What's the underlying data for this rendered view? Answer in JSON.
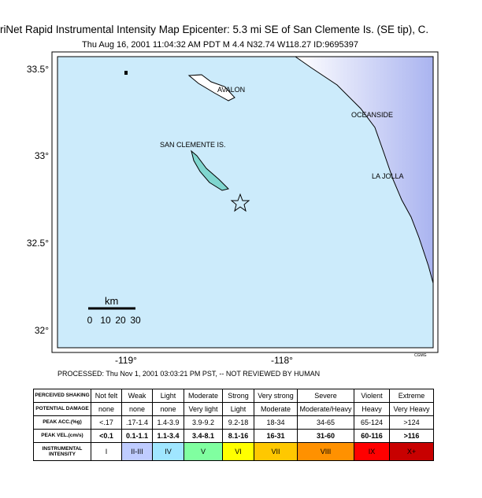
{
  "header": {
    "title": "riNet Rapid Instrumental Intensity Map Epicenter: 5.3 mi SE of San Clemente Is. (SE tip), C.",
    "subtitle": "Thu Aug 16, 2001 11:04:32 AM PDT   M 4.4   N32.74 W118.27    ID:9695397"
  },
  "map": {
    "lat_labels": [
      "33.5°",
      "33°",
      "32.5°",
      "32°"
    ],
    "lon_labels": [
      "-119°",
      "-118°"
    ],
    "places": [
      "AVALON",
      "OCEANSIDE",
      "SAN CLEMENTE IS.",
      "LA JOLLA"
    ],
    "scale": {
      "unit": "km",
      "labels": [
        "0",
        "10",
        "20",
        "30"
      ]
    },
    "credit": "CGMG"
  },
  "footer": {
    "processed": "PROCESSED: Thu Nov 1, 2001 03:03:21 PM PST, -- NOT REVIEWED BY HUMAN"
  },
  "legend": {
    "rows": [
      {
        "label": "PERCEIVED SHAKING",
        "cells": [
          "Not felt",
          "Weak",
          "Light",
          "Moderate",
          "Strong",
          "Very strong",
          "Severe",
          "Violent",
          "Extreme"
        ]
      },
      {
        "label": "POTENTIAL DAMAGE",
        "cells": [
          "none",
          "none",
          "none",
          "Very light",
          "Light",
          "Moderate",
          "Moderate/Heavy",
          "Heavy",
          "Very Heavy"
        ]
      },
      {
        "label": "PEAK ACC.(%g)",
        "cells": [
          "<.17",
          ".17-1.4",
          "1.4-3.9",
          "3.9-9.2",
          "9.2-18",
          "18-34",
          "34-65",
          "65-124",
          ">124"
        ]
      },
      {
        "label": "PEAK VEL.(cm/s)",
        "cells": [
          "<0.1",
          "0.1-1.1",
          "1.1-3.4",
          "3.4-8.1",
          "8.1-16",
          "16-31",
          "31-60",
          "60-116",
          ">116"
        ]
      },
      {
        "label": "INSTRUMENTAL INTENSITY",
        "cells": [
          "I",
          "II-III",
          "IV",
          "V",
          "VI",
          "VII",
          "VIII",
          "IX",
          "X+"
        ]
      }
    ]
  }
}
